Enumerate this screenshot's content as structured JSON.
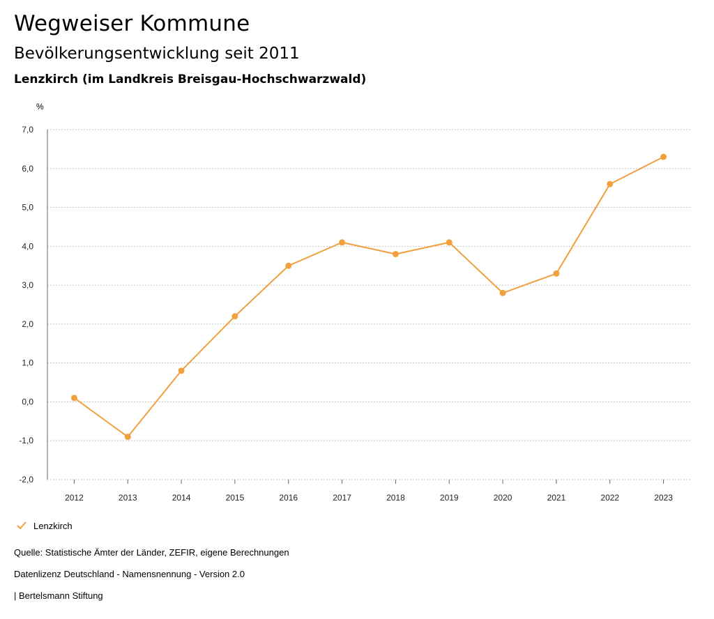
{
  "header": {
    "title": "Wegweiser Kommune",
    "subtitle": "Bevölkerungsentwicklung seit 2011",
    "place": "Lenzkirch (im Landkreis Breisgau-Hochschwarzwald)"
  },
  "chart_data": {
    "type": "line",
    "unit_label": "%",
    "categories": [
      "2012",
      "2013",
      "2014",
      "2015",
      "2016",
      "2017",
      "2018",
      "2019",
      "2020",
      "2021",
      "2022",
      "2023"
    ],
    "series": [
      {
        "name": "Lenzkirch",
        "color": "#f0a03c",
        "values": [
          0.1,
          -0.9,
          0.8,
          2.2,
          3.5,
          4.1,
          3.8,
          4.1,
          2.8,
          3.3,
          5.6,
          6.3
        ]
      }
    ],
    "ylim": [
      -2,
      7
    ],
    "yticks": [
      -2,
      -1,
      0,
      1,
      2,
      3,
      4,
      5,
      6,
      7
    ],
    "ytick_labels": [
      "-2,0",
      "-1,0",
      "0,0",
      "1,0",
      "2,0",
      "3,0",
      "4,0",
      "5,0",
      "6,0",
      "7,0"
    ],
    "grid": "horizontal-dotted",
    "legend": "bottom-left"
  },
  "legend": {
    "label": "Lenzkirch"
  },
  "footer": {
    "source": "Quelle: Statistische Ämter der Länder, ZEFIR, eigene Berechnungen",
    "license": "Datenlizenz Deutschland - Namensnennung - Version 2.0",
    "publisher": "| Bertelsmann Stiftung"
  }
}
